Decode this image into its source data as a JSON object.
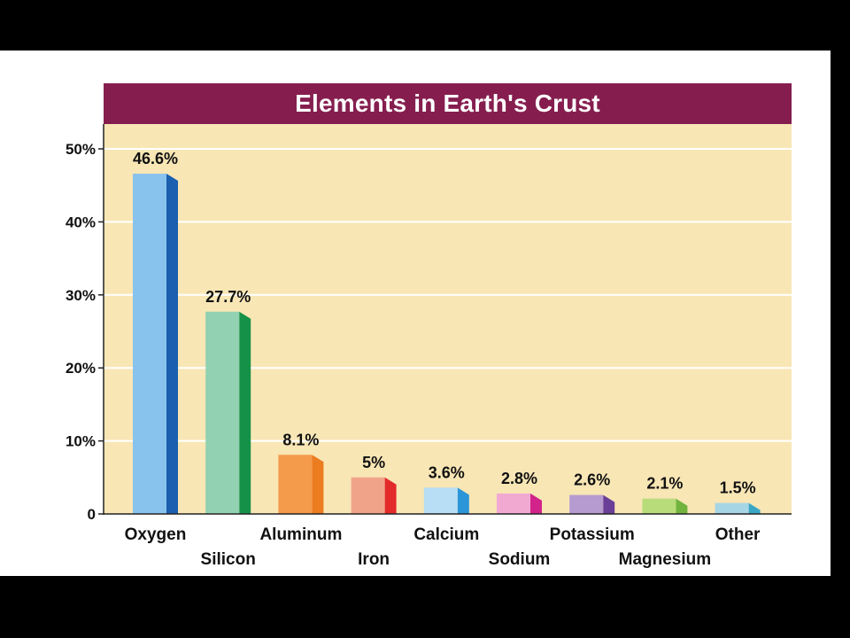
{
  "chart_data": {
    "type": "bar",
    "title": "Elements in Earth's Crust",
    "categories": [
      "Oxygen",
      "Silicon",
      "Aluminum",
      "Iron",
      "Calcium",
      "Sodium",
      "Potassium",
      "Magnesium",
      "Other"
    ],
    "values": [
      46.6,
      27.7,
      8.1,
      5,
      3.6,
      2.8,
      2.6,
      2.1,
      1.5
    ],
    "value_labels": [
      "46.6%",
      "27.7%",
      "8.1%",
      "5%",
      "3.6%",
      "2.8%",
      "2.6%",
      "2.1%",
      "1.5%"
    ],
    "yticks": [
      0,
      10,
      20,
      30,
      40,
      50
    ],
    "ytick_labels": [
      "0",
      "10%",
      "20%",
      "30%",
      "40%",
      "50%"
    ],
    "ylim": [
      0,
      50
    ],
    "grid": true,
    "xlabel": "",
    "ylabel": "",
    "colors": {
      "title_bg": "#851e4f",
      "plot_bg": "#f8e6b5",
      "bars": [
        {
          "front": "#88c3ee",
          "side": "#1a5fb0"
        },
        {
          "front": "#92d1b1",
          "side": "#159248"
        },
        {
          "front": "#f49a4b",
          "side": "#eb7c20"
        },
        {
          "front": "#f1a38a",
          "side": "#e32a2a"
        },
        {
          "front": "#b7def5",
          "side": "#2a96d8"
        },
        {
          "front": "#f1a9d2",
          "side": "#d2238b"
        },
        {
          "front": "#b59bcf",
          "side": "#6a3f97"
        },
        {
          "front": "#b8dc7a",
          "side": "#72b33d"
        },
        {
          "front": "#a6d5e5",
          "side": "#3aa6c6"
        }
      ]
    }
  }
}
